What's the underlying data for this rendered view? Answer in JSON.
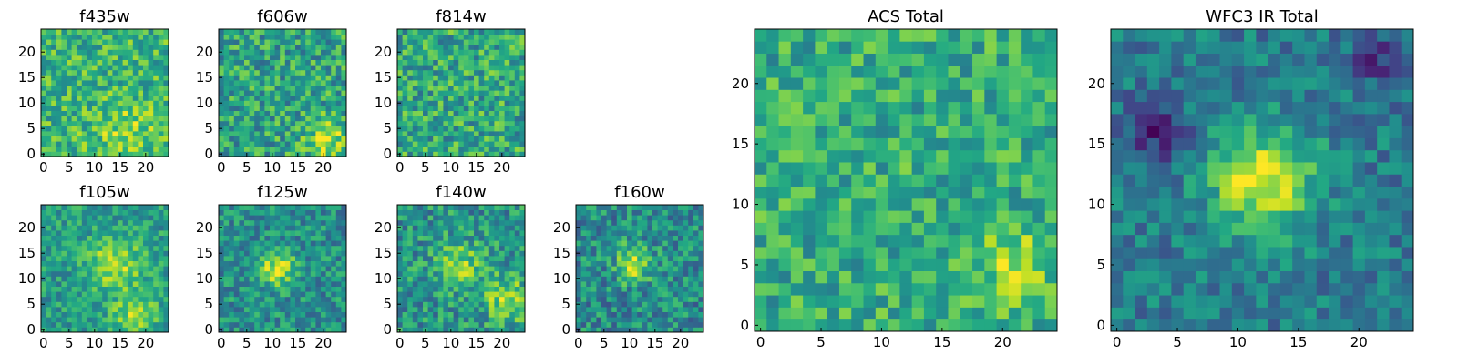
{
  "figure": {
    "colormap": "viridis",
    "colors": {
      "low": "#440154",
      "mid": "#21908c",
      "high": "#fde725",
      "frame": "#000000"
    }
  },
  "chart_data": [
    {
      "id": "f435w",
      "type": "heatmap",
      "title": "f435w",
      "grid_size": [
        25,
        25
      ],
      "xlim": [
        0,
        24
      ],
      "ylim": [
        0,
        24
      ],
      "xticks": [
        "0",
        "5",
        "10",
        "15",
        "20"
      ],
      "yticks": [
        "0",
        "5",
        "10",
        "15",
        "20"
      ],
      "mean_level": 0.66,
      "noise": 0.22,
      "blobs": [
        {
          "x": 16,
          "y": 4,
          "sigma": 4,
          "amplitude": 0.18
        }
      ],
      "seed": 11
    },
    {
      "id": "f606w",
      "type": "heatmap",
      "title": "f606w",
      "grid_size": [
        25,
        25
      ],
      "xlim": [
        0,
        24
      ],
      "ylim": [
        0,
        24
      ],
      "xticks": [
        "0",
        "5",
        "10",
        "15",
        "20"
      ],
      "yticks": [
        "0",
        "5",
        "10",
        "15",
        "20"
      ],
      "mean_level": 0.58,
      "noise": 0.24,
      "blobs": [
        {
          "x": 21,
          "y": 3,
          "sigma": 3,
          "amplitude": 0.3
        }
      ],
      "seed": 23
    },
    {
      "id": "f814w",
      "type": "heatmap",
      "title": "f814w",
      "grid_size": [
        25,
        25
      ],
      "xlim": [
        0,
        24
      ],
      "ylim": [
        0,
        24
      ],
      "xticks": [
        "0",
        "5",
        "10",
        "15",
        "20"
      ],
      "yticks": [
        "0",
        "5",
        "10",
        "15",
        "20"
      ],
      "mean_level": 0.6,
      "noise": 0.24,
      "blobs": [],
      "seed": 37
    },
    {
      "id": "f105w",
      "type": "heatmap",
      "title": "f105w",
      "grid_size": [
        25,
        25
      ],
      "xlim": [
        0,
        24
      ],
      "ylim": [
        0,
        24
      ],
      "xticks": [
        "0",
        "5",
        "10",
        "15",
        "20"
      ],
      "yticks": [
        "0",
        "5",
        "10",
        "15",
        "20"
      ],
      "mean_level": 0.55,
      "noise": 0.18,
      "blobs": [
        {
          "x": 14,
          "y": 13,
          "sigma": 3.5,
          "amplitude": 0.35
        },
        {
          "x": 18,
          "y": 3,
          "sigma": 3,
          "amplitude": 0.3
        }
      ],
      "seed": 41
    },
    {
      "id": "f125w",
      "type": "heatmap",
      "title": "f125w",
      "grid_size": [
        25,
        25
      ],
      "xlim": [
        0,
        24
      ],
      "ylim": [
        0,
        24
      ],
      "xticks": [
        "0",
        "5",
        "10",
        "15",
        "20"
      ],
      "yticks": [
        "0",
        "5",
        "10",
        "15",
        "20"
      ],
      "mean_level": 0.5,
      "noise": 0.2,
      "blobs": [
        {
          "x": 11,
          "y": 12,
          "sigma": 2.5,
          "amplitude": 0.4
        }
      ],
      "seed": 53
    },
    {
      "id": "f140w",
      "type": "heatmap",
      "title": "f140w",
      "grid_size": [
        25,
        25
      ],
      "xlim": [
        0,
        24
      ],
      "ylim": [
        0,
        24
      ],
      "xticks": [
        "0",
        "5",
        "10",
        "15",
        "20"
      ],
      "yticks": [
        "0",
        "5",
        "10",
        "15",
        "20"
      ],
      "mean_level": 0.52,
      "noise": 0.22,
      "blobs": [
        {
          "x": 12,
          "y": 13,
          "sigma": 3,
          "amplitude": 0.3
        },
        {
          "x": 21,
          "y": 6,
          "sigma": 3,
          "amplitude": 0.35
        }
      ],
      "seed": 67
    },
    {
      "id": "f160w",
      "type": "heatmap",
      "title": "f160w",
      "grid_size": [
        25,
        25
      ],
      "xlim": [
        0,
        24
      ],
      "ylim": [
        0,
        24
      ],
      "xticks": [
        "0",
        "5",
        "10",
        "15",
        "20"
      ],
      "yticks": [
        "0",
        "5",
        "10",
        "15",
        "20"
      ],
      "mean_level": 0.48,
      "noise": 0.22,
      "blobs": [
        {
          "x": 11,
          "y": 13,
          "sigma": 2.5,
          "amplitude": 0.4
        }
      ],
      "seed": 79
    },
    {
      "id": "acs-total",
      "type": "heatmap",
      "title": "ACS Total",
      "grid_size": [
        25,
        25
      ],
      "xlim": [
        0,
        24
      ],
      "ylim": [
        0,
        24
      ],
      "xticks": [
        "0",
        "5",
        "10",
        "15",
        "20"
      ],
      "yticks": [
        "0",
        "5",
        "10",
        "15",
        "20"
      ],
      "mean_level": 0.62,
      "noise": 0.2,
      "blobs": [
        {
          "x": 21,
          "y": 5,
          "sigma": 2,
          "amplitude": 0.25
        }
      ],
      "seed": 83
    },
    {
      "id": "wfc3-ir-total",
      "type": "heatmap",
      "title": "WFC3 IR Total",
      "grid_size": [
        25,
        25
      ],
      "xlim": [
        0,
        24
      ],
      "ylim": [
        0,
        24
      ],
      "xticks": [
        "0",
        "5",
        "10",
        "15",
        "20"
      ],
      "yticks": [
        "0",
        "5",
        "10",
        "15",
        "20"
      ],
      "mean_level": 0.42,
      "noise": 0.16,
      "blobs": [
        {
          "x": 12,
          "y": 12,
          "sigma": 3,
          "amplitude": 0.55
        },
        {
          "x": 3,
          "y": 16,
          "sigma": 2,
          "amplitude": -0.3
        },
        {
          "x": 22,
          "y": 22,
          "sigma": 2,
          "amplitude": -0.25
        }
      ],
      "seed": 97
    }
  ]
}
